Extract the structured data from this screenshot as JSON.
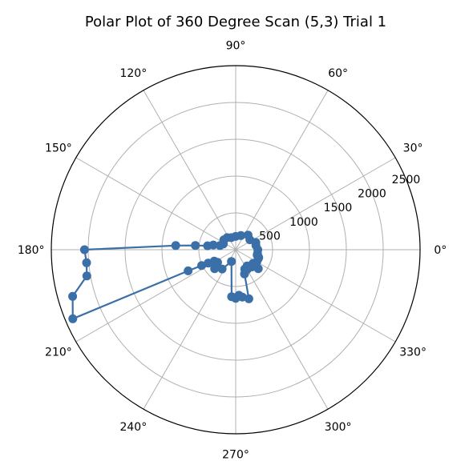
{
  "chart_data": {
    "type": "scatter",
    "title": "Polar Plot of 360 Degree Scan (5,3) Trial 1",
    "projection": "polar",
    "xlabel": "",
    "ylabel": "",
    "angle_unit": "degrees",
    "theta_ticks": [
      0,
      30,
      60,
      90,
      120,
      150,
      180,
      210,
      240,
      270,
      300,
      330
    ],
    "theta_tick_labels": [
      "0°",
      "30°",
      "60°",
      "90°",
      "120°",
      "150°",
      "180°",
      "210°",
      "240°",
      "270°",
      "300°",
      "330°"
    ],
    "r_ticks": [
      500,
      1000,
      1500,
      2000,
      2500
    ],
    "r_tick_labels": [
      "500",
      "1000",
      "1500",
      "2000",
      "2500"
    ],
    "rlim": [
      0,
      2500
    ],
    "grid": true,
    "marker": "circle",
    "color": "#3b6fa8",
    "series": [
      {
        "theta_deg": [
          0,
          12,
          20,
          35,
          50,
          70,
          90,
          110,
          125,
          140,
          155,
          165,
          168,
          172,
          174,
          176,
          180,
          185,
          190,
          196,
          203,
          204,
          205,
          206,
          208,
          215,
          222,
          235,
          250,
          265,
          270,
          274,
          278,
          285,
          290,
          295,
          300,
          305,
          313,
          318,
          320,
          322,
          330,
          338,
          341,
          343,
          346,
          350
        ],
        "r": [
          300,
          280,
          290,
          235,
          260,
          205,
          180,
          175,
          200,
          210,
          185,
          220,
          310,
          385,
          550,
          815,
          2050,
          2030,
          2050,
          2300,
          2400,
          705,
          510,
          415,
          330,
          300,
          385,
          320,
          170,
          640,
          660,
          620,
          650,
          690,
          350,
          290,
          310,
          270,
          320,
          320,
          400,
          300,
          330,
          330,
          330,
          320,
          300,
          300
        ]
      }
    ]
  }
}
